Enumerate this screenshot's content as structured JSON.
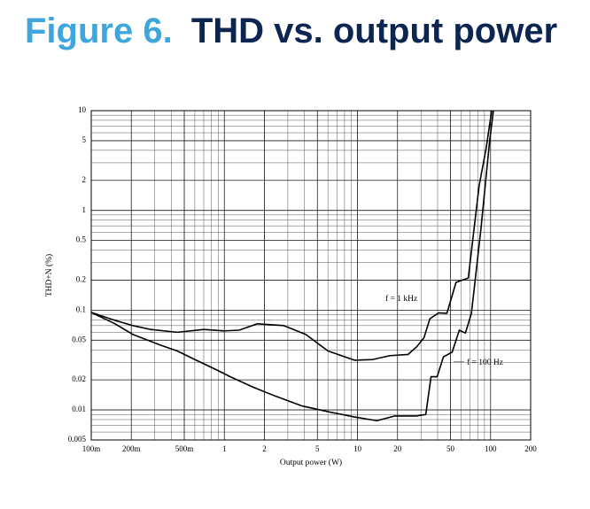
{
  "chart_data": {
    "type": "line",
    "figure_label": "Figure 6.",
    "title": "THD vs. output power",
    "x_label": "Output power (W)",
    "y_label": "THD+N (%)",
    "xscale": "log",
    "yscale": "log",
    "grid": true,
    "xlim": [
      0.1,
      200
    ],
    "ylim": [
      0.005,
      10
    ],
    "xticks": [
      {
        "value": 0.1,
        "label": "100m"
      },
      {
        "value": 0.2,
        "label": "200m"
      },
      {
        "value": 0.5,
        "label": "500m"
      },
      1,
      2,
      5,
      10,
      20,
      50,
      100,
      200
    ],
    "yticks": [
      0.005,
      0.01,
      0.02,
      0.05,
      0.1,
      0.2,
      0.5,
      1,
      2,
      5,
      10
    ],
    "series": [
      {
        "name": "f = 1 kHz",
        "color": "#000000",
        "x": [
          0.1,
          0.151,
          0.206,
          0.28,
          0.443,
          0.7,
          1,
          1.29,
          1.77,
          2.8,
          4.1,
          6.0,
          9.5,
          13,
          17.6,
          24,
          27.9,
          31.6,
          35,
          40.7,
          47,
          55,
          68,
          82,
          92.5,
          102
        ],
        "values": [
          0.095,
          0.079,
          0.07,
          0.064,
          0.06,
          0.064,
          0.062,
          0.063,
          0.073,
          0.07,
          0.057,
          0.039,
          0.0315,
          0.032,
          0.035,
          0.036,
          0.043,
          0.053,
          0.082,
          0.094,
          0.093,
          0.19,
          0.21,
          1.76,
          4.15,
          10
        ]
      },
      {
        "name": "f = 100 Hz",
        "color": "#000000",
        "x": [
          0.1,
          0.151,
          0.206,
          0.326,
          0.443,
          0.6,
          0.886,
          1.11,
          1.63,
          2.4,
          3.8,
          6.0,
          9.5,
          14,
          19.1,
          27.9,
          32.6,
          35.7,
          39.7,
          44.2,
          51.5,
          58.2,
          64.7,
          71.8,
          84.4,
          98.3,
          105
        ],
        "values": [
          0.095,
          0.073,
          0.057,
          0.045,
          0.039,
          0.032,
          0.025,
          0.0215,
          0.017,
          0.0138,
          0.011,
          0.0096,
          0.0085,
          0.0078,
          0.0087,
          0.0087,
          0.009,
          0.0215,
          0.0215,
          0.034,
          0.038,
          0.063,
          0.059,
          0.093,
          0.63,
          4.9,
          10
        ]
      }
    ]
  }
}
